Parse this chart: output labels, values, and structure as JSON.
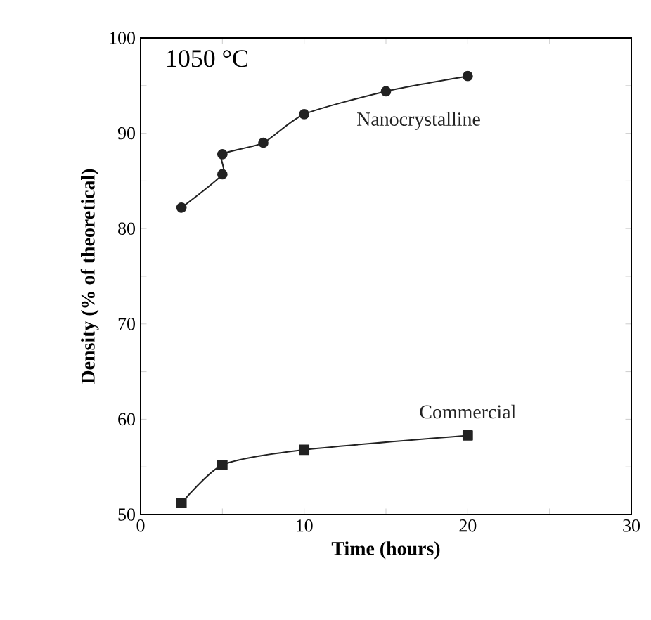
{
  "chart_data": {
    "type": "line",
    "xlabel": "Time (hours)",
    "ylabel": "Density (% of theoretical)",
    "xlim": [
      0,
      30
    ],
    "xticks": [
      0,
      {
        "value": 5,
        "label": null
      },
      10,
      {
        "value": 15,
        "label": null
      },
      20,
      {
        "value": 25,
        "label": null
      },
      30
    ],
    "ylim": [
      50,
      100
    ],
    "yticks": [
      50,
      {
        "value": 55,
        "label": null
      },
      60,
      {
        "value": 65,
        "label": null
      },
      70,
      {
        "value": 75,
        "label": null
      },
      80,
      {
        "value": 85,
        "label": null
      },
      90,
      {
        "value": 95,
        "label": null
      },
      100
    ],
    "annotations": [
      "1050 °C"
    ],
    "grid": false,
    "legend": false,
    "series": [
      {
        "name": "Nanocrystalline",
        "color": "#222222",
        "marker": "circle",
        "x": [
          2.5,
          5,
          5,
          7.5,
          10,
          15,
          20
        ],
        "values": [
          82.2,
          85.7,
          87.8,
          89,
          92,
          94.4,
          96
        ]
      },
      {
        "name": "Commercial",
        "color": "#222222",
        "marker": "square",
        "x": [
          2.5,
          5,
          10,
          20
        ],
        "values": [
          51.2,
          55.2,
          56.8,
          58.3
        ]
      }
    ]
  }
}
